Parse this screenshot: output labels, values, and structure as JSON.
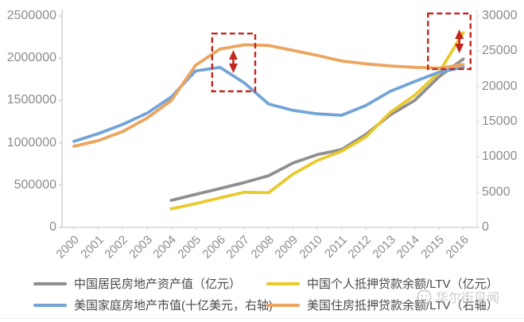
{
  "watermark": {
    "text": "华尔街见闻"
  },
  "chart_data": {
    "type": "line",
    "title": "",
    "years": [
      2000,
      2001,
      2002,
      2003,
      2004,
      2005,
      2006,
      2007,
      2008,
      2009,
      2010,
      2011,
      2012,
      2013,
      2014,
      2015,
      2016
    ],
    "left_axis": {
      "min": 0,
      "max": 2500000,
      "tick_values": [
        0,
        500000,
        1000000,
        1500000,
        2000000,
        2500000
      ]
    },
    "right_axis": {
      "min": 0,
      "max": 30000,
      "tick_values": [
        0,
        5000,
        10000,
        15000,
        20000,
        25000,
        30000
      ]
    },
    "grid": false,
    "legend_position": "bottom",
    "series": [
      {
        "id": "china-re-value",
        "name": "中国居民房地产资产值（亿元）",
        "axis": "left",
        "color": "#8f8f8f",
        "values": [
          null,
          null,
          null,
          null,
          320000,
          390000,
          460000,
          530000,
          610000,
          760000,
          860000,
          920000,
          1100000,
          1330000,
          1500000,
          1780000,
          1990000
        ]
      },
      {
        "id": "china-mortgage-ltv",
        "name": "中国个人抵押贷款余额/LTV（亿元）",
        "axis": "left",
        "color": "#e9c92b",
        "values": [
          null,
          null,
          null,
          null,
          220000,
          280000,
          350000,
          415000,
          410000,
          630000,
          790000,
          900000,
          1070000,
          1360000,
          1560000,
          1830000,
          2300000
        ]
      },
      {
        "id": "us-re-value",
        "name": "美国家庭房地产市值(十亿美元，右轴)",
        "axis": "right",
        "color": "#72a4d8",
        "values": [
          12200,
          13300,
          14600,
          16200,
          18500,
          22200,
          22700,
          20500,
          17500,
          16600,
          16100,
          15900,
          17300,
          19300,
          20700,
          22000,
          22700
        ]
      },
      {
        "id": "us-mortgage-ltv",
        "name": "美国住房抵押贷款余额/LTV（右轴）",
        "axis": "right",
        "color": "#eca45e",
        "values": [
          11500,
          12300,
          13600,
          15500,
          18000,
          23000,
          25300,
          25900,
          25800,
          25100,
          24400,
          23600,
          23200,
          22900,
          22700,
          22600,
          23100
        ]
      }
    ],
    "annotations": {
      "color": "#c2271f",
      "boxes": [
        {
          "x1_year": 2005.68,
          "x2_year": 2007.45,
          "top_right": 27500,
          "bottom_right": 19300
        },
        {
          "x1_year": 2014.55,
          "x2_year": 2016.3,
          "top_right": 30350,
          "bottom_right": 22450
        }
      ],
      "arrows": [
        {
          "x_year": 2006.55,
          "top_right": 25150,
          "bottom_right": 21900
        },
        {
          "x_year": 2015.84,
          "top_right": 28080,
          "bottom_right": 24700
        }
      ]
    }
  }
}
